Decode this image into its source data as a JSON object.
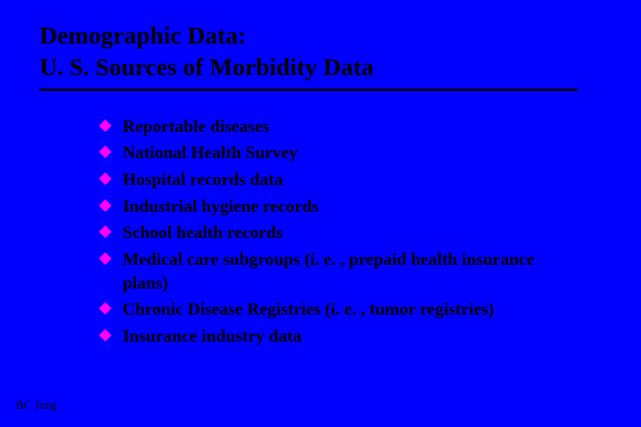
{
  "slide": {
    "background_color": "#0000ff",
    "title_color": "#000000",
    "text_color": "#000000",
    "bullet_color": "#ff00ff",
    "underline_color": "#000000",
    "title_line1": "Demographic Data:",
    "title_line2": "U. S.  Sources of Morbidity Data",
    "title_fontsize": 31,
    "body_fontsize": 22,
    "bullets": [
      "Reportable diseases",
      "National Health Survey",
      "Hospital records data",
      "Industrial hygiene records",
      "School health records",
      "Medical care subgroups (i. e. , prepaid health insurance plans)",
      "Chronic Disease Registries (i. e. , tumor registries)",
      "Insurance industry data"
    ],
    "footer": "BC Jung"
  }
}
